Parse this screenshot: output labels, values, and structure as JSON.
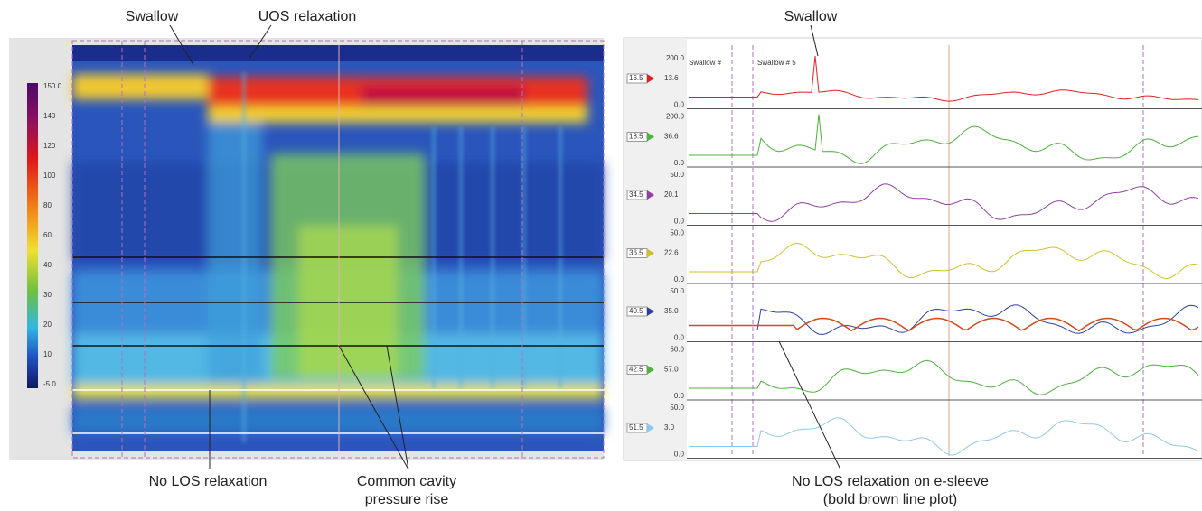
{
  "left_panel": {
    "annotations": {
      "swallow": "Swallow",
      "uos_relaxation": "UOS relaxation",
      "no_los_relaxation": "No LOS relaxation",
      "common_cavity_line1": "Common cavity",
      "common_cavity_line2": "pressure rise"
    },
    "colorbar_labels": [
      "150.0",
      "140",
      "120",
      "100",
      "80",
      "60",
      "40",
      "30",
      "20",
      "10",
      "-5.0"
    ]
  },
  "right_panel": {
    "annotations": {
      "swallow": "Swallow",
      "no_los_line1": "No LOS relaxation on e-sleeve",
      "no_los_line2": "(bold brown line plot)"
    },
    "markers": [
      "Swallow #",
      "Swallow # 5"
    ],
    "channels": [
      {
        "position": "16.5",
        "value": "13.6",
        "scale_top": "200.0",
        "scale_bottom": "0.0"
      },
      {
        "position": "18.5",
        "value": "36.6",
        "scale_top": "200.0",
        "scale_bottom": "0.0"
      },
      {
        "position": "34.5",
        "value": "20.1",
        "scale_top": "50.0",
        "scale_bottom": "0.0"
      },
      {
        "position": "36.5",
        "value": "22.6",
        "scale_top": "50.0",
        "scale_bottom": "0.0"
      },
      {
        "position": "40.5",
        "value": "35.0",
        "scale_top": "50.0",
        "scale_bottom": "0.0"
      },
      {
        "position": "42.5",
        "value": "57.0",
        "scale_top": "50.0",
        "scale_bottom": "0.0"
      },
      {
        "position": "51.5",
        "value": "3.0",
        "scale_top": "50.0",
        "scale_bottom": "0.0"
      }
    ]
  }
}
